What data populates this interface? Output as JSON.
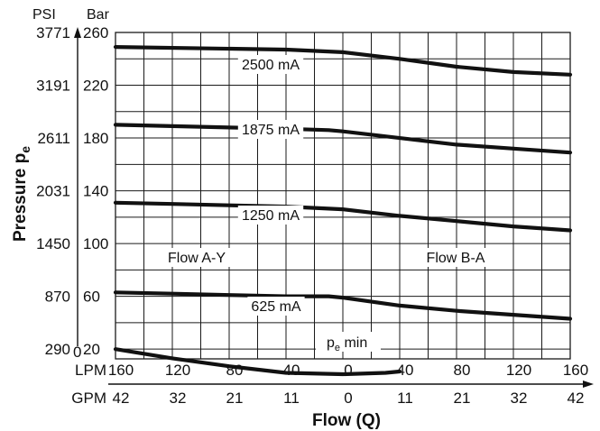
{
  "chart_data": {
    "type": "line",
    "title": "",
    "xlabel": "Flow (Q)",
    "ylabel": "Pressure p",
    "ylabel_sub": "e",
    "y_units": {
      "left": "PSI",
      "right": "Bar"
    },
    "x_units": {
      "top": "LPM",
      "bottom": "GPM"
    },
    "ylim": [
      0,
      260
    ],
    "grid": true,
    "bar_ticks": [
      "20",
      "60",
      "100",
      "140",
      "180",
      "220",
      "260"
    ],
    "psi_ticks": [
      "290",
      "870",
      "1450",
      "2031",
      "2611",
      "3191",
      "3771"
    ],
    "zero_label": "0",
    "lpm_ticks": [
      "160",
      "120",
      "80",
      "40",
      "0",
      "40",
      "80",
      "120",
      "160"
    ],
    "gpm_ticks": [
      "42",
      "32",
      "21",
      "11",
      "0",
      "11",
      "21",
      "32",
      "42"
    ],
    "regions": [
      {
        "label": "Flow A-Y"
      },
      {
        "label": "Flow B-A"
      }
    ],
    "series": [
      {
        "name": "2500 mA",
        "x": [
          -160,
          -40,
          0,
          40,
          80,
          120,
          160
        ],
        "y": [
          249,
          247,
          245,
          240,
          234,
          230,
          228
        ]
      },
      {
        "name": "1875 mA",
        "x": [
          -160,
          -120,
          -80,
          -40,
          -10,
          0,
          40,
          80,
          120,
          160
        ],
        "y": [
          190,
          189,
          188,
          187,
          186,
          185,
          180,
          175,
          172,
          169
        ]
      },
      {
        "name": "1250 mA",
        "x": [
          -160,
          -120,
          -80,
          -40,
          0,
          40,
          80,
          120,
          160
        ],
        "y": [
          131,
          130,
          129,
          128,
          126,
          121,
          117,
          113,
          110
        ]
      },
      {
        "name": "625 mA",
        "x": [
          -160,
          -120,
          -80,
          -40,
          -10,
          0,
          40,
          80,
          120,
          160
        ],
        "y": [
          63,
          62,
          61,
          60,
          60,
          59,
          53,
          49,
          46,
          43
        ]
      },
      {
        "name": "p_e min",
        "display": {
          "main": "p",
          "sub": "e",
          "rest": " min"
        },
        "x": [
          -160,
          -120,
          -80,
          -40,
          0,
          30,
          40
        ],
        "y": [
          20,
          13,
          7,
          2,
          1,
          2,
          3
        ]
      }
    ]
  }
}
